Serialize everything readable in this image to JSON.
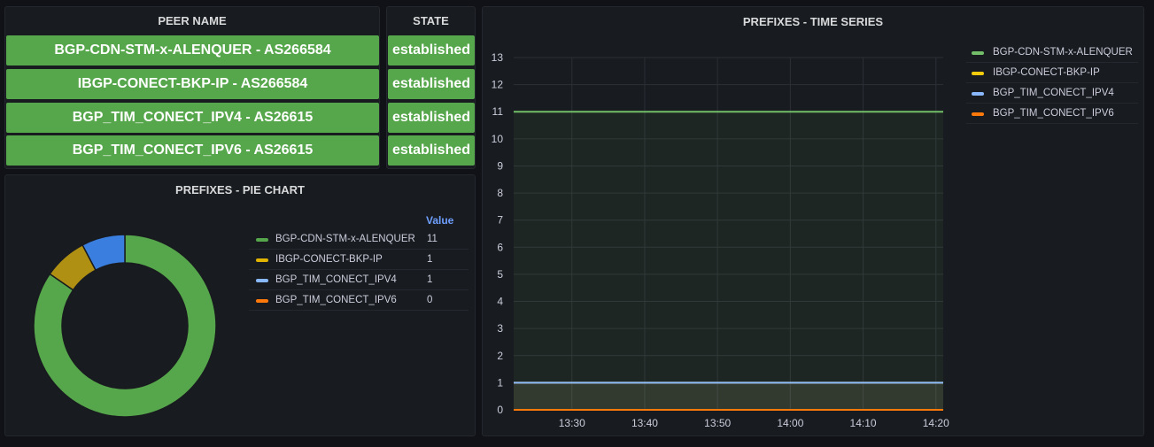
{
  "peer_table": {
    "headers": {
      "peer": "PEER NAME",
      "state": "STATE"
    },
    "rows": [
      {
        "peer": "BGP-CDN-STM-x-ALENQUER - AS266584",
        "state": "established"
      },
      {
        "peer": "IBGP-CONECT-BKP-IP - AS266584",
        "state": "established"
      },
      {
        "peer": "BGP_TIM_CONECT_IPV4 - AS26615",
        "state": "established"
      },
      {
        "peer": "BGP_TIM_CONECT_IPV6 - AS26615",
        "state": "established"
      }
    ],
    "cell_color": "#56a64b"
  },
  "pie_panel": {
    "title": "PREFIXES - PIE CHART",
    "value_header": "Value",
    "legend": [
      {
        "name": "BGP-CDN-STM-x-ALENQUER",
        "value": "11",
        "color": "#56a64b"
      },
      {
        "name": "IBGP-CONECT-BKP-IP",
        "value": "1",
        "color": "#e0b400"
      },
      {
        "name": "BGP_TIM_CONECT_IPV4",
        "value": "1",
        "color": "#8ab8ff"
      },
      {
        "name": "BGP_TIM_CONECT_IPV6",
        "value": "0",
        "color": "#ff780a"
      }
    ]
  },
  "timeseries_panel": {
    "title": "PREFIXES - TIME SERIES",
    "legend": [
      {
        "name": "BGP-CDN-STM-x-ALENQUER",
        "color": "#73bf69"
      },
      {
        "name": "IBGP-CONECT-BKP-IP",
        "color": "#f2cc0c"
      },
      {
        "name": "BGP_TIM_CONECT_IPV4",
        "color": "#8ab8ff"
      },
      {
        "name": "BGP_TIM_CONECT_IPV6",
        "color": "#ff780a"
      }
    ]
  },
  "chart_data": [
    {
      "type": "pie",
      "title": "PREFIXES - PIE CHART",
      "categories": [
        "BGP-CDN-STM-x-ALENQUER",
        "IBGP-CONECT-BKP-IP",
        "BGP_TIM_CONECT_IPV4",
        "BGP_TIM_CONECT_IPV6"
      ],
      "values": [
        11,
        1,
        1,
        0
      ],
      "colors": [
        "#56a64b",
        "#b09012",
        "#3a7fe0",
        "#ff780a"
      ],
      "donut": true,
      "legend_placement": "right"
    },
    {
      "type": "line",
      "title": "PREFIXES - TIME SERIES",
      "x_ticks": [
        "13:30",
        "13:40",
        "13:50",
        "14:00",
        "14:10",
        "14:20"
      ],
      "x_range": [
        "13:22",
        "14:21"
      ],
      "y_ticks": [
        0,
        1,
        2,
        3,
        4,
        5,
        6,
        7,
        8,
        9,
        10,
        11,
        12,
        13
      ],
      "ylim": [
        0,
        13
      ],
      "grid": true,
      "legend_placement": "right",
      "series": [
        {
          "name": "BGP-CDN-STM-x-ALENQUER",
          "color": "#73bf69",
          "x": [
            "13:22",
            "14:21"
          ],
          "values": [
            11,
            11
          ]
        },
        {
          "name": "IBGP-CONECT-BKP-IP",
          "color": "#f2cc0c",
          "x": [
            "13:22",
            "14:21"
          ],
          "values": [
            1,
            1
          ]
        },
        {
          "name": "BGP_TIM_CONECT_IPV4",
          "color": "#8ab8ff",
          "x": [
            "13:22",
            "14:21"
          ],
          "values": [
            1,
            1
          ]
        },
        {
          "name": "BGP_TIM_CONECT_IPV6",
          "color": "#ff780a",
          "x": [
            "13:22",
            "14:21"
          ],
          "values": [
            0,
            0
          ]
        }
      ]
    }
  ]
}
